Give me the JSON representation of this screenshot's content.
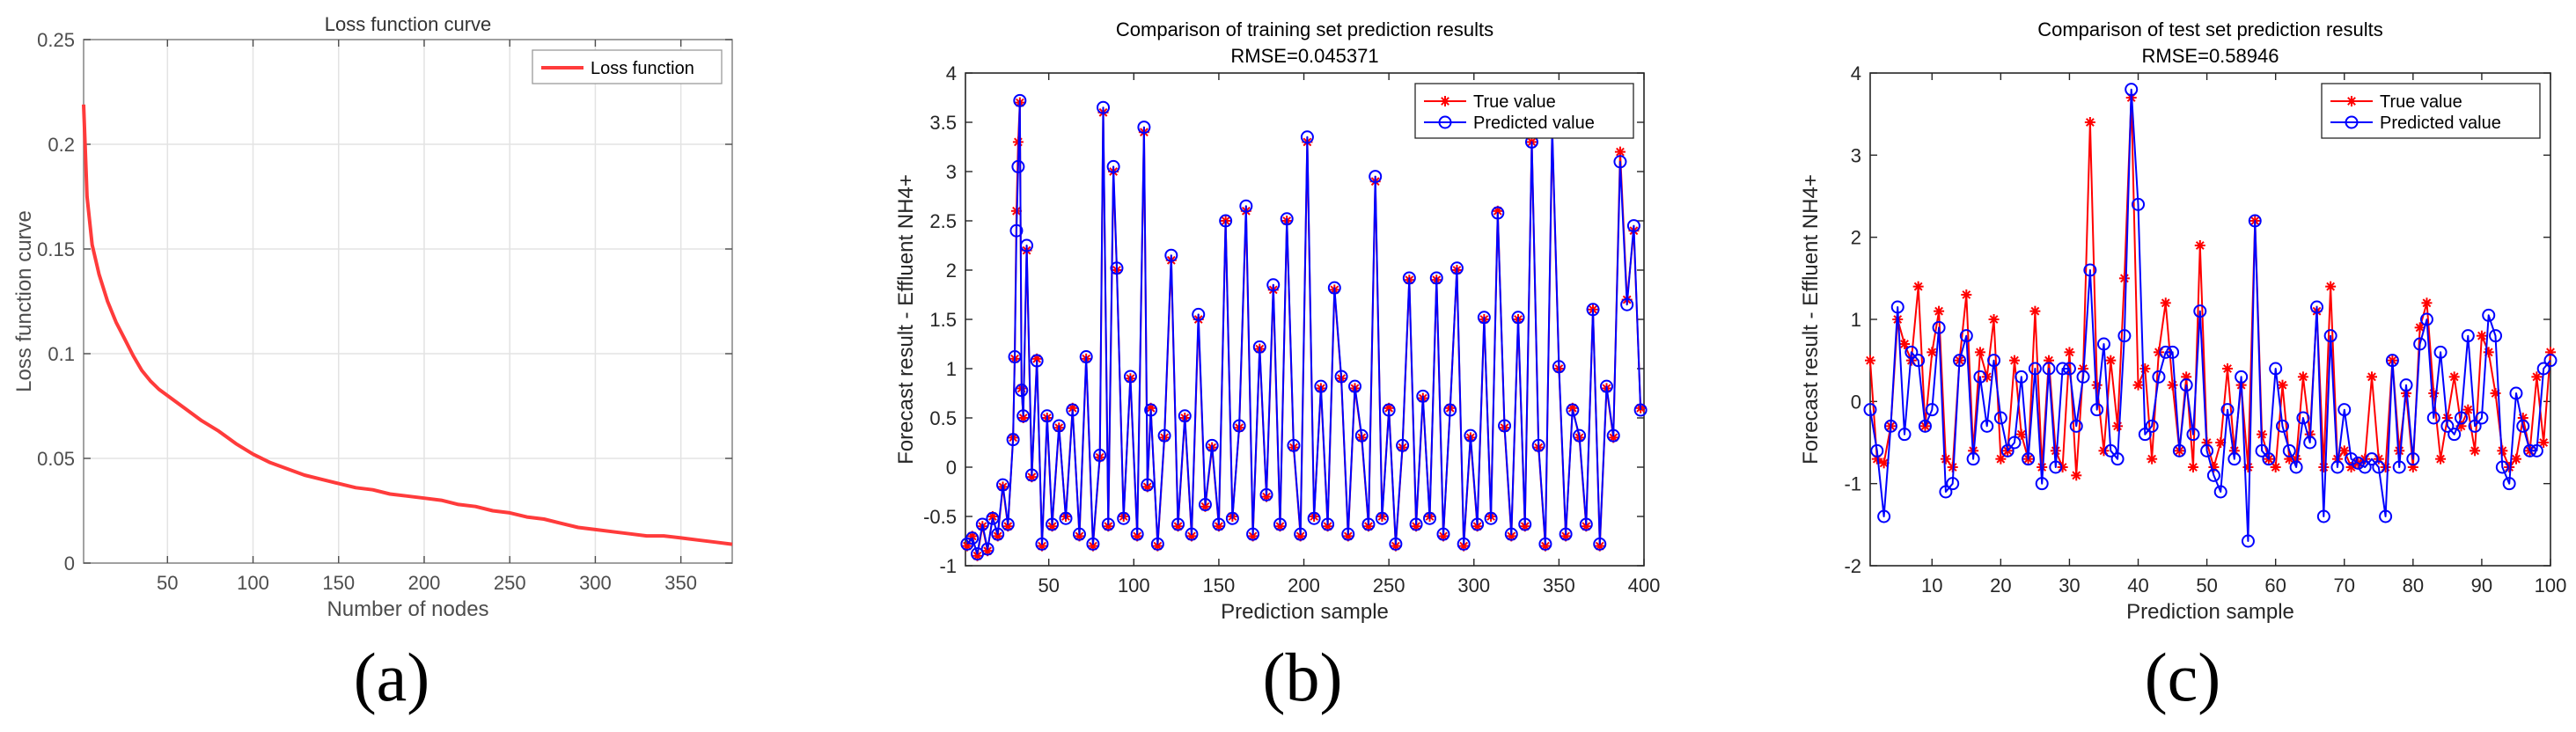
{
  "chart_data": [
    {
      "type": "line",
      "panel": "(a)",
      "title": "Loss function curve",
      "xlabel": "Number of nodes",
      "ylabel": "Loss function curve",
      "xlim": [
        1,
        380
      ],
      "ylim": [
        0,
        0.25
      ],
      "xticks": [
        50,
        100,
        150,
        200,
        250,
        300,
        350
      ],
      "yticks": [
        0,
        0.05,
        0.1,
        0.15,
        0.2,
        0.25
      ],
      "ytick_labels": [
        "0",
        "0.05",
        "0.1",
        "0.15",
        "0.2",
        "0.25"
      ],
      "grid": true,
      "legend": {
        "position": "top-right",
        "entries": [
          "Loss function"
        ]
      },
      "series": [
        {
          "name": "Loss function",
          "color": "#ff3b3b",
          "x": [
            1,
            3,
            6,
            10,
            15,
            20,
            25,
            30,
            35,
            40,
            45,
            50,
            60,
            70,
            80,
            90,
            100,
            110,
            120,
            130,
            140,
            150,
            160,
            170,
            180,
            190,
            200,
            210,
            220,
            230,
            240,
            250,
            260,
            270,
            280,
            290,
            300,
            310,
            320,
            330,
            340,
            350,
            360,
            370,
            380
          ],
          "y": [
            0.219,
            0.175,
            0.152,
            0.138,
            0.125,
            0.115,
            0.107,
            0.099,
            0.092,
            0.087,
            0.083,
            0.08,
            0.074,
            0.068,
            0.063,
            0.057,
            0.052,
            0.048,
            0.045,
            0.042,
            0.04,
            0.038,
            0.036,
            0.035,
            0.033,
            0.032,
            0.031,
            0.03,
            0.028,
            0.027,
            0.025,
            0.024,
            0.022,
            0.021,
            0.019,
            0.017,
            0.016,
            0.015,
            0.014,
            0.013,
            0.013,
            0.012,
            0.011,
            0.01,
            0.009
          ]
        }
      ]
    },
    {
      "type": "line",
      "panel": "(b)",
      "title": "Comparison of training set prediction results",
      "subtitle": "RMSE=0.045371",
      "xlabel": "Prediction sample",
      "ylabel": "Forecast result - Effluent NH4+",
      "xlim": [
        1,
        400
      ],
      "ylim": [
        -1,
        4
      ],
      "xticks": [
        50,
        100,
        150,
        200,
        250,
        300,
        350,
        400
      ],
      "yticks": [
        -1,
        -0.5,
        0,
        0.5,
        1,
        1.5,
        2,
        2.5,
        3,
        3.5,
        4
      ],
      "ytick_labels": [
        "-1",
        "-0.5",
        "0",
        "0.5",
        "1",
        "1.5",
        "2",
        "2.5",
        "3",
        "3.5",
        "4"
      ],
      "grid": false,
      "legend": {
        "position": "top-right",
        "entries": [
          "True value",
          "Predicted value"
        ]
      },
      "series": [
        {
          "name": "True value",
          "color": "#ff0000",
          "marker": "asterisk",
          "x": [
            2,
            5,
            8,
            11,
            14,
            17,
            20,
            23,
            26,
            29,
            30,
            31,
            32,
            33,
            34,
            35,
            37,
            40,
            43,
            46,
            49,
            52,
            56,
            60,
            64,
            68,
            72,
            76,
            80,
            82,
            85,
            88,
            90,
            94,
            98,
            102,
            106,
            108,
            110,
            114,
            118,
            122,
            126,
            130,
            134,
            138,
            142,
            146,
            150,
            154,
            158,
            162,
            166,
            170,
            174,
            178,
            182,
            186,
            190,
            194,
            198,
            202,
            206,
            210,
            214,
            218,
            222,
            226,
            230,
            234,
            238,
            242,
            246,
            250,
            254,
            258,
            262,
            266,
            270,
            274,
            278,
            282,
            286,
            290,
            294,
            298,
            302,
            306,
            310,
            314,
            318,
            322,
            326,
            330,
            334,
            338,
            342,
            346,
            350,
            354,
            358,
            362,
            366,
            370,
            374,
            378,
            382,
            386,
            390,
            394,
            398
          ],
          "y": [
            -0.8,
            -0.7,
            -0.9,
            -0.6,
            -0.85,
            -0.5,
            -0.7,
            -0.2,
            -0.6,
            0.3,
            1.1,
            2.6,
            3.3,
            3.7,
            0.8,
            0.5,
            2.2,
            -0.1,
            1.1,
            -0.8,
            0.5,
            -0.6,
            0.4,
            -0.5,
            0.6,
            -0.7,
            1.1,
            -0.8,
            0.1,
            3.6,
            -0.6,
            3.0,
            2.0,
            -0.5,
            0.9,
            -0.7,
            3.4,
            -0.2,
            0.6,
            -0.8,
            0.3,
            2.1,
            -0.6,
            0.5,
            -0.7,
            1.5,
            -0.4,
            0.2,
            -0.6,
            2.5,
            -0.5,
            0.4,
            2.6,
            -0.7,
            1.2,
            -0.3,
            1.8,
            -0.6,
            2.5,
            0.2,
            -0.7,
            3.3,
            -0.5,
            0.8,
            -0.6,
            1.8,
            0.9,
            -0.7,
            0.8,
            0.3,
            -0.6,
            2.9,
            -0.5,
            0.6,
            -0.8,
            0.2,
            1.9,
            -0.6,
            0.7,
            -0.5,
            1.9,
            -0.7,
            0.6,
            2.0,
            -0.8,
            0.3,
            -0.6,
            1.5,
            -0.5,
            2.6,
            0.4,
            -0.7,
            1.5,
            -0.6,
            3.3,
            0.2,
            -0.8,
            3.4,
            1.0,
            -0.7,
            0.6,
            0.3,
            -0.6,
            1.6,
            -0.8,
            0.8,
            0.3,
            3.2,
            1.7,
            2.4,
            0.6
          ]
        },
        {
          "name": "Predicted value",
          "color": "#0000ff",
          "marker": "circle",
          "x": [
            2,
            5,
            8,
            11,
            14,
            17,
            20,
            23,
            26,
            29,
            30,
            31,
            32,
            33,
            34,
            35,
            37,
            40,
            43,
            46,
            49,
            52,
            56,
            60,
            64,
            68,
            72,
            76,
            80,
            82,
            85,
            88,
            90,
            94,
            98,
            102,
            106,
            108,
            110,
            114,
            118,
            122,
            126,
            130,
            134,
            138,
            142,
            146,
            150,
            154,
            158,
            162,
            166,
            170,
            174,
            178,
            182,
            186,
            190,
            194,
            198,
            202,
            206,
            210,
            214,
            218,
            222,
            226,
            230,
            234,
            238,
            242,
            246,
            250,
            254,
            258,
            262,
            266,
            270,
            274,
            278,
            282,
            286,
            290,
            294,
            298,
            302,
            306,
            310,
            314,
            318,
            322,
            326,
            330,
            334,
            338,
            342,
            346,
            350,
            354,
            358,
            362,
            366,
            370,
            374,
            378,
            382,
            386,
            390,
            394,
            398
          ],
          "y": [
            -0.78,
            -0.72,
            -0.88,
            -0.58,
            -0.83,
            -0.52,
            -0.68,
            -0.18,
            -0.58,
            0.28,
            1.12,
            2.4,
            3.05,
            3.72,
            0.78,
            0.52,
            2.25,
            -0.08,
            1.08,
            -0.78,
            0.52,
            -0.58,
            0.42,
            -0.52,
            0.58,
            -0.68,
            1.12,
            -0.78,
            0.12,
            3.65,
            -0.58,
            3.05,
            2.02,
            -0.52,
            0.92,
            -0.68,
            3.45,
            -0.18,
            0.58,
            -0.78,
            0.32,
            2.15,
            -0.58,
            0.52,
            -0.68,
            1.55,
            -0.38,
            0.22,
            -0.58,
            2.5,
            -0.52,
            0.42,
            2.65,
            -0.68,
            1.22,
            -0.28,
            1.85,
            -0.58,
            2.52,
            0.22,
            -0.68,
            3.35,
            -0.52,
            0.82,
            -0.58,
            1.82,
            0.92,
            -0.68,
            0.82,
            0.32,
            -0.58,
            2.95,
            -0.52,
            0.58,
            -0.78,
            0.22,
            1.92,
            -0.58,
            0.72,
            -0.52,
            1.92,
            -0.68,
            0.58,
            2.02,
            -0.78,
            0.32,
            -0.58,
            1.52,
            -0.52,
            2.58,
            0.42,
            -0.68,
            1.52,
            -0.58,
            3.3,
            0.22,
            -0.78,
            3.45,
            1.02,
            -0.68,
            0.58,
            0.32,
            -0.58,
            1.6,
            -0.78,
            0.82,
            0.32,
            3.1,
            1.65,
            2.45,
            0.58
          ]
        }
      ]
    },
    {
      "type": "line",
      "panel": "(c)",
      "title": "Comparison of test set prediction results",
      "subtitle": "RMSE=0.58946",
      "xlabel": "Prediction sample",
      "ylabel": "Forecast result - Effluent NH4+",
      "xlim": [
        1,
        100
      ],
      "ylim": [
        -2,
        4
      ],
      "xticks": [
        10,
        20,
        30,
        40,
        50,
        60,
        70,
        80,
        90,
        100
      ],
      "yticks": [
        -2,
        -1,
        0,
        1,
        2,
        3,
        4
      ],
      "ytick_labels": [
        "-2",
        "-1",
        "0",
        "1",
        "2",
        "3",
        "4"
      ],
      "grid": false,
      "legend": {
        "position": "top-right",
        "entries": [
          "True value",
          "Predicted value"
        ]
      },
      "series": [
        {
          "name": "True value",
          "color": "#ff0000",
          "marker": "asterisk",
          "x": [
            1,
            2,
            3,
            4,
            5,
            6,
            7,
            8,
            9,
            10,
            11,
            12,
            13,
            14,
            15,
            16,
            17,
            18,
            19,
            20,
            21,
            22,
            23,
            24,
            25,
            26,
            27,
            28,
            29,
            30,
            31,
            32,
            33,
            34,
            35,
            36,
            37,
            38,
            39,
            40,
            41,
            42,
            43,
            44,
            45,
            46,
            47,
            48,
            49,
            50,
            51,
            52,
            53,
            54,
            55,
            56,
            57,
            58,
            59,
            60,
            61,
            62,
            63,
            64,
            65,
            66,
            67,
            68,
            69,
            70,
            71,
            72,
            73,
            74,
            75,
            76,
            77,
            78,
            79,
            80,
            81,
            82,
            83,
            84,
            85,
            86,
            87,
            88,
            89,
            90,
            91,
            92,
            93,
            94,
            95,
            96,
            97,
            98,
            99,
            100
          ],
          "y": [
            0.5,
            -0.7,
            -0.75,
            -0.3,
            1.0,
            0.7,
            0.5,
            1.4,
            -0.3,
            0.6,
            1.1,
            -0.7,
            -0.8,
            0.5,
            1.3,
            -0.6,
            0.6,
            0.3,
            1.0,
            -0.7,
            -0.6,
            0.5,
            -0.4,
            -0.7,
            1.1,
            -0.8,
            0.5,
            -0.6,
            -0.8,
            0.6,
            -0.9,
            0.4,
            3.4,
            0.2,
            -0.6,
            0.5,
            -0.3,
            1.5,
            3.7,
            0.2,
            0.4,
            -0.7,
            0.6,
            1.2,
            0.2,
            -0.6,
            0.3,
            -0.8,
            1.9,
            -0.5,
            -0.8,
            -0.5,
            0.4,
            -0.6,
            0.2,
            -0.8,
            2.2,
            -0.4,
            -0.7,
            -0.8,
            0.2,
            -0.7,
            -0.7,
            0.3,
            -0.4,
            1.1,
            -0.8,
            1.4,
            -0.7,
            -0.6,
            -0.8,
            -0.75,
            -0.7,
            0.3,
            -0.7,
            -0.8,
            0.5,
            -0.6,
            0.1,
            -0.8,
            0.9,
            1.2,
            0.1,
            -0.7,
            -0.2,
            0.3,
            -0.3,
            -0.1,
            -0.6,
            0.8,
            0.6,
            0.1,
            -0.6,
            -0.8,
            -0.7,
            -0.2,
            -0.6,
            0.3,
            -0.5,
            0.6
          ]
        },
        {
          "name": "Predicted value",
          "color": "#0000ff",
          "marker": "circle",
          "x": [
            1,
            2,
            3,
            4,
            5,
            6,
            7,
            8,
            9,
            10,
            11,
            12,
            13,
            14,
            15,
            16,
            17,
            18,
            19,
            20,
            21,
            22,
            23,
            24,
            25,
            26,
            27,
            28,
            29,
            30,
            31,
            32,
            33,
            34,
            35,
            36,
            37,
            38,
            39,
            40,
            41,
            42,
            43,
            44,
            45,
            46,
            47,
            48,
            49,
            50,
            51,
            52,
            53,
            54,
            55,
            56,
            57,
            58,
            59,
            60,
            61,
            62,
            63,
            64,
            65,
            66,
            67,
            68,
            69,
            70,
            71,
            72,
            73,
            74,
            75,
            76,
            77,
            78,
            79,
            80,
            81,
            82,
            83,
            84,
            85,
            86,
            87,
            88,
            89,
            90,
            91,
            92,
            93,
            94,
            95,
            96,
            97,
            98,
            99,
            100
          ],
          "y": [
            -0.1,
            -0.6,
            -1.4,
            -0.3,
            1.15,
            -0.4,
            0.6,
            0.5,
            -0.3,
            -0.1,
            0.9,
            -1.1,
            -1.0,
            0.5,
            0.8,
            -0.7,
            0.3,
            -0.3,
            0.5,
            -0.2,
            -0.6,
            -0.5,
            0.3,
            -0.7,
            0.4,
            -1.0,
            0.4,
            -0.8,
            0.4,
            0.4,
            -0.3,
            0.3,
            1.6,
            -0.1,
            0.7,
            -0.6,
            -0.7,
            0.8,
            3.8,
            2.4,
            -0.4,
            -0.3,
            0.3,
            0.6,
            0.6,
            -0.6,
            0.2,
            -0.4,
            1.1,
            -0.6,
            -0.9,
            -1.1,
            -0.1,
            -0.7,
            0.3,
            -1.7,
            2.2,
            -0.6,
            -0.7,
            0.4,
            -0.3,
            -0.6,
            -0.8,
            -0.2,
            -0.5,
            1.15,
            -1.4,
            0.8,
            -0.8,
            -0.1,
            -0.7,
            -0.75,
            -0.8,
            -0.7,
            -0.8,
            -1.4,
            0.5,
            -0.8,
            0.2,
            -0.7,
            0.7,
            1.0,
            -0.2,
            0.6,
            -0.3,
            -0.4,
            -0.2,
            0.8,
            -0.3,
            -0.2,
            1.05,
            0.8,
            -0.8,
            -1.0,
            0.1,
            -0.3,
            -0.6,
            -0.6,
            0.4,
            0.5
          ]
        }
      ]
    }
  ]
}
